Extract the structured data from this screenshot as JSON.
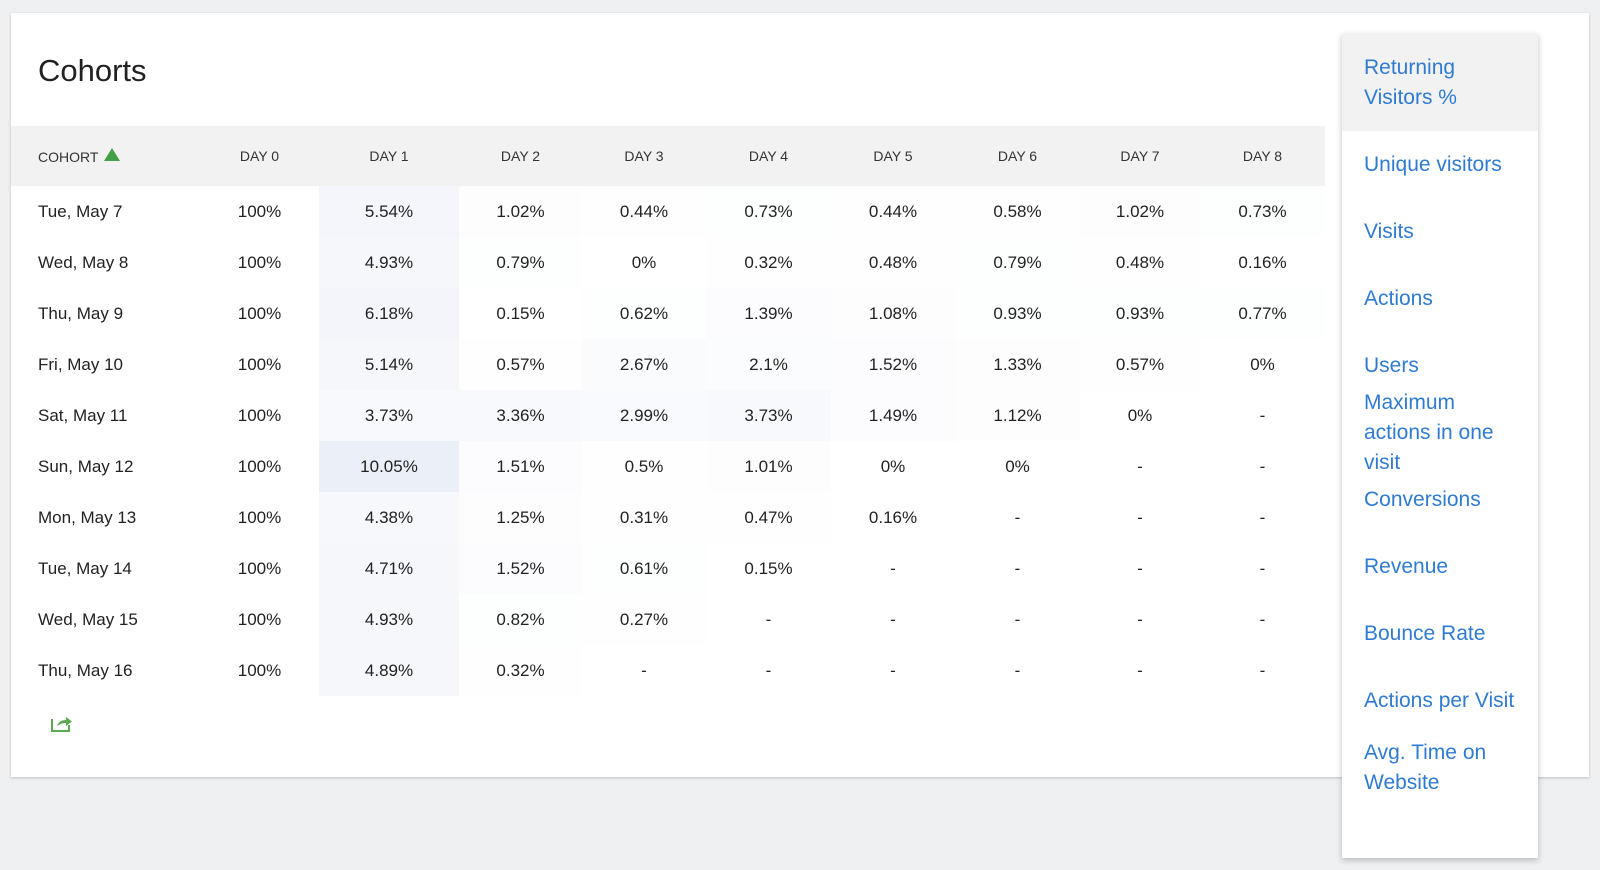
{
  "header": {
    "title": "Cohorts"
  },
  "table": {
    "columns": [
      "COHORT",
      "DAY 0",
      "DAY 1",
      "DAY 2",
      "DAY 3",
      "DAY 4",
      "DAY 5",
      "DAY 6",
      "DAY 7",
      "DAY 8"
    ],
    "rows": [
      [
        "Tue, May 7",
        "100%",
        "5.54%",
        "1.02%",
        "0.44%",
        "0.73%",
        "0.44%",
        "0.58%",
        "1.02%",
        "0.73%"
      ],
      [
        "Wed, May 8",
        "100%",
        "4.93%",
        "0.79%",
        "0%",
        "0.32%",
        "0.48%",
        "0.79%",
        "0.48%",
        "0.16%"
      ],
      [
        "Thu, May 9",
        "100%",
        "6.18%",
        "0.15%",
        "0.62%",
        "1.39%",
        "1.08%",
        "0.93%",
        "0.93%",
        "0.77%"
      ],
      [
        "Fri, May 10",
        "100%",
        "5.14%",
        "0.57%",
        "2.67%",
        "2.1%",
        "1.52%",
        "1.33%",
        "0.57%",
        "0%"
      ],
      [
        "Sat, May 11",
        "100%",
        "3.73%",
        "3.36%",
        "2.99%",
        "3.73%",
        "1.49%",
        "1.12%",
        "0%",
        "-"
      ],
      [
        "Sun, May 12",
        "100%",
        "10.05%",
        "1.51%",
        "0.5%",
        "1.01%",
        "0%",
        "0%",
        "-",
        "-"
      ],
      [
        "Mon, May 13",
        "100%",
        "4.38%",
        "1.25%",
        "0.31%",
        "0.47%",
        "0.16%",
        "-",
        "-",
        "-"
      ],
      [
        "Tue, May 14",
        "100%",
        "4.71%",
        "1.52%",
        "0.61%",
        "0.15%",
        "-",
        "-",
        "-",
        "-"
      ],
      [
        "Wed, May 15",
        "100%",
        "4.93%",
        "0.82%",
        "0.27%",
        "-",
        "-",
        "-",
        "-",
        "-"
      ],
      [
        "Thu, May 16",
        "100%",
        "4.89%",
        "0.32%",
        "-",
        "-",
        "-",
        "-",
        "-",
        "-"
      ]
    ]
  },
  "menu": {
    "items": [
      "Returning Visitors %",
      "Unique visitors",
      "Visits",
      "Actions",
      "Users",
      "Maximum actions in one visit",
      "Conversions",
      "Revenue",
      "Bounce Rate",
      "Actions per Visit",
      "Avg. Time on Website"
    ]
  }
}
